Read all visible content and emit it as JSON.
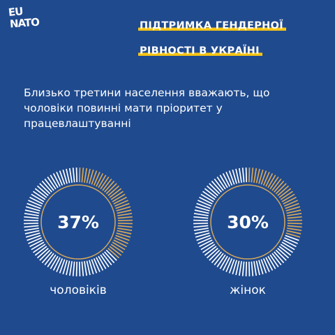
{
  "logo": {
    "line1": "EU",
    "line2": "NATO"
  },
  "title": {
    "line1": "ПІДТРИМКА ГЕНДЕРНОЇ",
    "line2": "РІВНОСТІ В УКРАЇНІ"
  },
  "lead": "Близько третини населення вважають, що чоловіки повинні мати пріоритет у працевлаштуванні",
  "chart_data": {
    "type": "pie",
    "gauges": [
      {
        "value_label": "37%",
        "value": 37,
        "label": "чоловіків"
      },
      {
        "value_label": "30%",
        "value": 30,
        "label": "жінок"
      }
    ]
  },
  "colors": {
    "background": "#1f4a8e",
    "accent": "#f6c415",
    "gauge_filled": "#d8a85a",
    "gauge_empty": "#ffffff"
  }
}
